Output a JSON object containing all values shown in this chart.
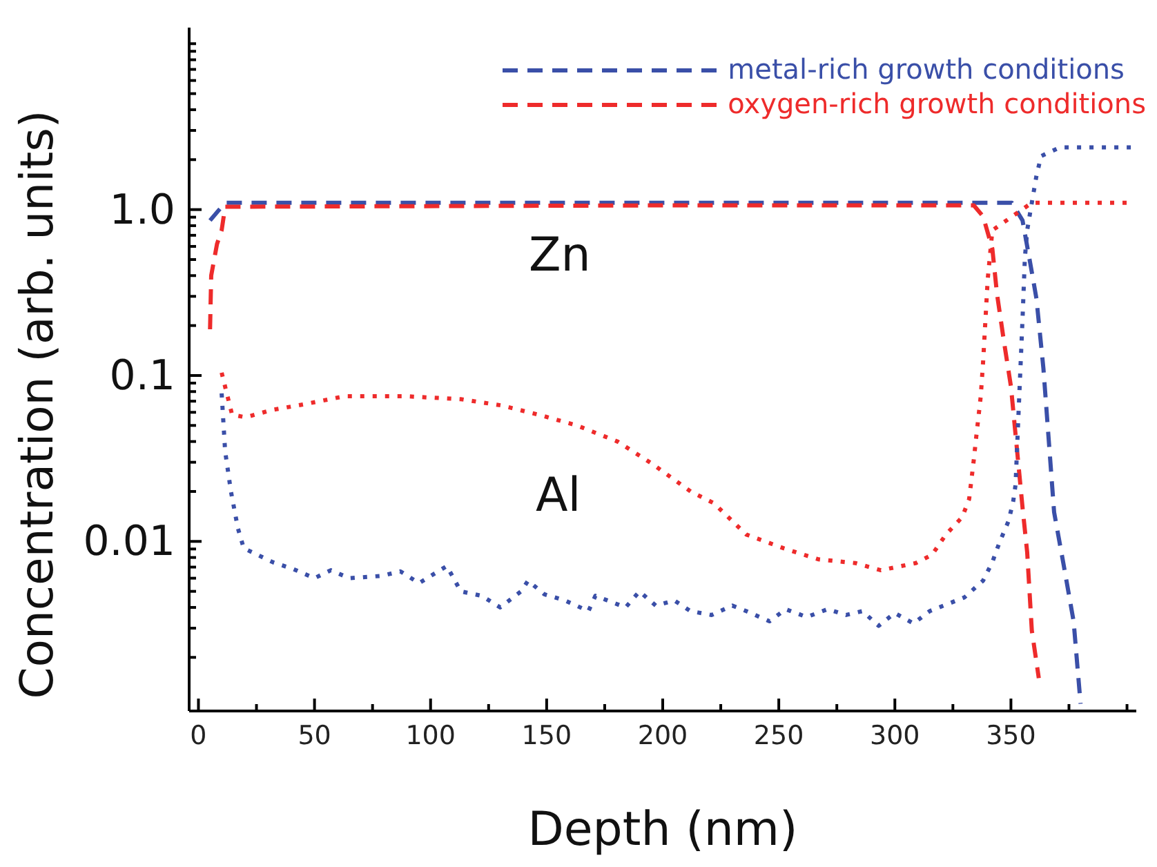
{
  "chart_data": {
    "type": "line",
    "xlabel": "Depth (nm)",
    "ylabel": "Concentration (arb. units)",
    "log": "y",
    "grid": false,
    "legend": "top right",
    "marker": "none",
    "xlim": [
      -4,
      404
    ],
    "ylim": [
      0.00095,
      12.5
    ],
    "xticks": [
      0,
      {
        "value": 25,
        "label": null
      },
      50,
      {
        "value": 75,
        "label": null
      },
      100,
      {
        "value": 125,
        "label": null
      },
      150,
      {
        "value": 175,
        "label": null
      },
      200,
      {
        "value": 225,
        "label": null
      },
      250,
      {
        "value": 275,
        "label": null
      },
      300,
      {
        "value": 325,
        "label": null
      },
      350,
      {
        "value": 375,
        "label": null
      },
      {
        "value": 400,
        "label": null
      }
    ],
    "yticks": [
      {
        "value": 0.002,
        "label": null
      },
      {
        "value": 0.003,
        "label": null
      },
      {
        "value": 0.004,
        "label": null
      },
      {
        "value": 0.005,
        "label": null
      },
      {
        "value": 0.006,
        "label": null
      },
      {
        "value": 0.007,
        "label": null
      },
      {
        "value": 0.008,
        "label": null
      },
      {
        "value": 0.009,
        "label": null
      },
      0.01,
      {
        "value": 0.02,
        "label": null
      },
      {
        "value": 0.03,
        "label": null
      },
      {
        "value": 0.04,
        "label": null
      },
      {
        "value": 0.05,
        "label": null
      },
      {
        "value": 0.06,
        "label": null
      },
      {
        "value": 0.07,
        "label": null
      },
      {
        "value": 0.08,
        "label": null
      },
      {
        "value": 0.09,
        "label": null
      },
      0.1,
      {
        "value": 0.2,
        "label": null
      },
      {
        "value": 0.3,
        "label": null
      },
      {
        "value": 0.4,
        "label": null
      },
      {
        "value": 0.5,
        "label": null
      },
      {
        "value": 0.6,
        "label": null
      },
      {
        "value": 0.7,
        "label": null
      },
      {
        "value": 0.8,
        "label": null
      },
      {
        "value": 0.9,
        "label": null
      },
      {
        "value": 1,
        "label": "1.0"
      },
      {
        "value": 2,
        "label": null
      },
      {
        "value": 3,
        "label": null
      },
      {
        "value": 4,
        "label": null
      },
      {
        "value": 5,
        "label": null
      },
      {
        "value": 6,
        "label": null
      },
      {
        "value": 7,
        "label": null
      },
      {
        "value": 8,
        "label": null
      },
      {
        "value": 9,
        "label": null
      },
      {
        "value": 10,
        "label": null
      }
    ],
    "annotations": [
      "Zn",
      "Al"
    ],
    "series": [
      {
        "name": "metal-rich growth conditions",
        "color": "#3a4fa8",
        "line_style": "dashed",
        "x": [
          5,
          11.5,
          200,
          334,
          344,
          350.4,
          355,
          359,
          361,
          364,
          368.6,
          372.8,
          377,
          380
        ],
        "values": [
          0.86,
          1.1,
          1.1,
          1.1,
          1.1,
          1.1,
          0.86,
          0.42,
          0.29,
          0.11,
          0.015,
          0.0071,
          0.0033,
          0.00105
        ]
      },
      {
        "name": "oxygen-rich growth conditions",
        "color": "#ee2b2b",
        "line_style": "dashed",
        "x": [
          5,
          5.5,
          8,
          10,
          11.5,
          200,
          334,
          338,
          342,
          344,
          347,
          350,
          355,
          357,
          359,
          362
        ],
        "values": [
          0.19,
          0.4,
          0.62,
          0.75,
          1.04,
          1.06,
          1.06,
          0.91,
          0.58,
          0.31,
          0.16,
          0.086,
          0.016,
          0.0086,
          0.0029,
          0.0015
        ]
      },
      {
        "color": "#3a4fa8",
        "line_style": "dotted",
        "x": [
          10,
          11.5,
          14,
          17,
          19.5,
          32,
          41,
          50,
          57,
          65,
          79,
          87,
          95,
          107,
          113,
          122,
          130,
          139,
          142,
          149,
          158,
          168,
          171,
          184,
          190,
          197,
          205,
          212,
          221,
          230,
          236,
          246,
          253,
          262,
          271,
          279,
          286,
          293,
          300,
          308,
          315,
          330,
          338,
          342,
          345,
          349,
          351,
          352,
          353,
          355,
          356,
          357,
          359,
          361,
          363,
          371,
          404
        ],
        "values": [
          0.078,
          0.035,
          0.02,
          0.012,
          0.0091,
          0.0075,
          0.0068,
          0.006,
          0.0067,
          0.006,
          0.0062,
          0.0066,
          0.0056,
          0.0071,
          0.005,
          0.0047,
          0.004,
          0.005,
          0.0058,
          0.0048,
          0.0044,
          0.0038,
          0.0047,
          0.004,
          0.005,
          0.0041,
          0.0044,
          0.0038,
          0.0036,
          0.0041,
          0.0038,
          0.0033,
          0.0039,
          0.0035,
          0.0039,
          0.0036,
          0.0038,
          0.0031,
          0.0037,
          0.0032,
          0.0038,
          0.0046,
          0.0058,
          0.0075,
          0.0098,
          0.0133,
          0.0175,
          0.022,
          0.048,
          0.22,
          0.51,
          0.75,
          1.1,
          1.6,
          2.1,
          2.37,
          2.37
        ]
      },
      {
        "color": "#ee2b2b",
        "line_style": "dotted",
        "x": [
          10,
          14.5,
          20.4,
          31.7,
          45.4,
          63,
          89,
          113,
          130.5,
          146.6,
          163,
          180.5,
          196,
          212,
          222,
          236,
          252,
          267,
          283,
          294,
          309,
          316,
          322,
          329,
          332,
          334,
          335,
          337,
          338,
          340,
          342,
          359,
          401
        ],
        "values": [
          0.104,
          0.058,
          0.056,
          0.062,
          0.067,
          0.075,
          0.075,
          0.072,
          0.066,
          0.058,
          0.05,
          0.04,
          0.029,
          0.02,
          0.017,
          0.011,
          0.0091,
          0.0078,
          0.0074,
          0.0067,
          0.0074,
          0.0083,
          0.011,
          0.014,
          0.018,
          0.031,
          0.042,
          0.075,
          0.12,
          0.38,
          0.75,
          1.1,
          1.1
        ]
      }
    ]
  }
}
